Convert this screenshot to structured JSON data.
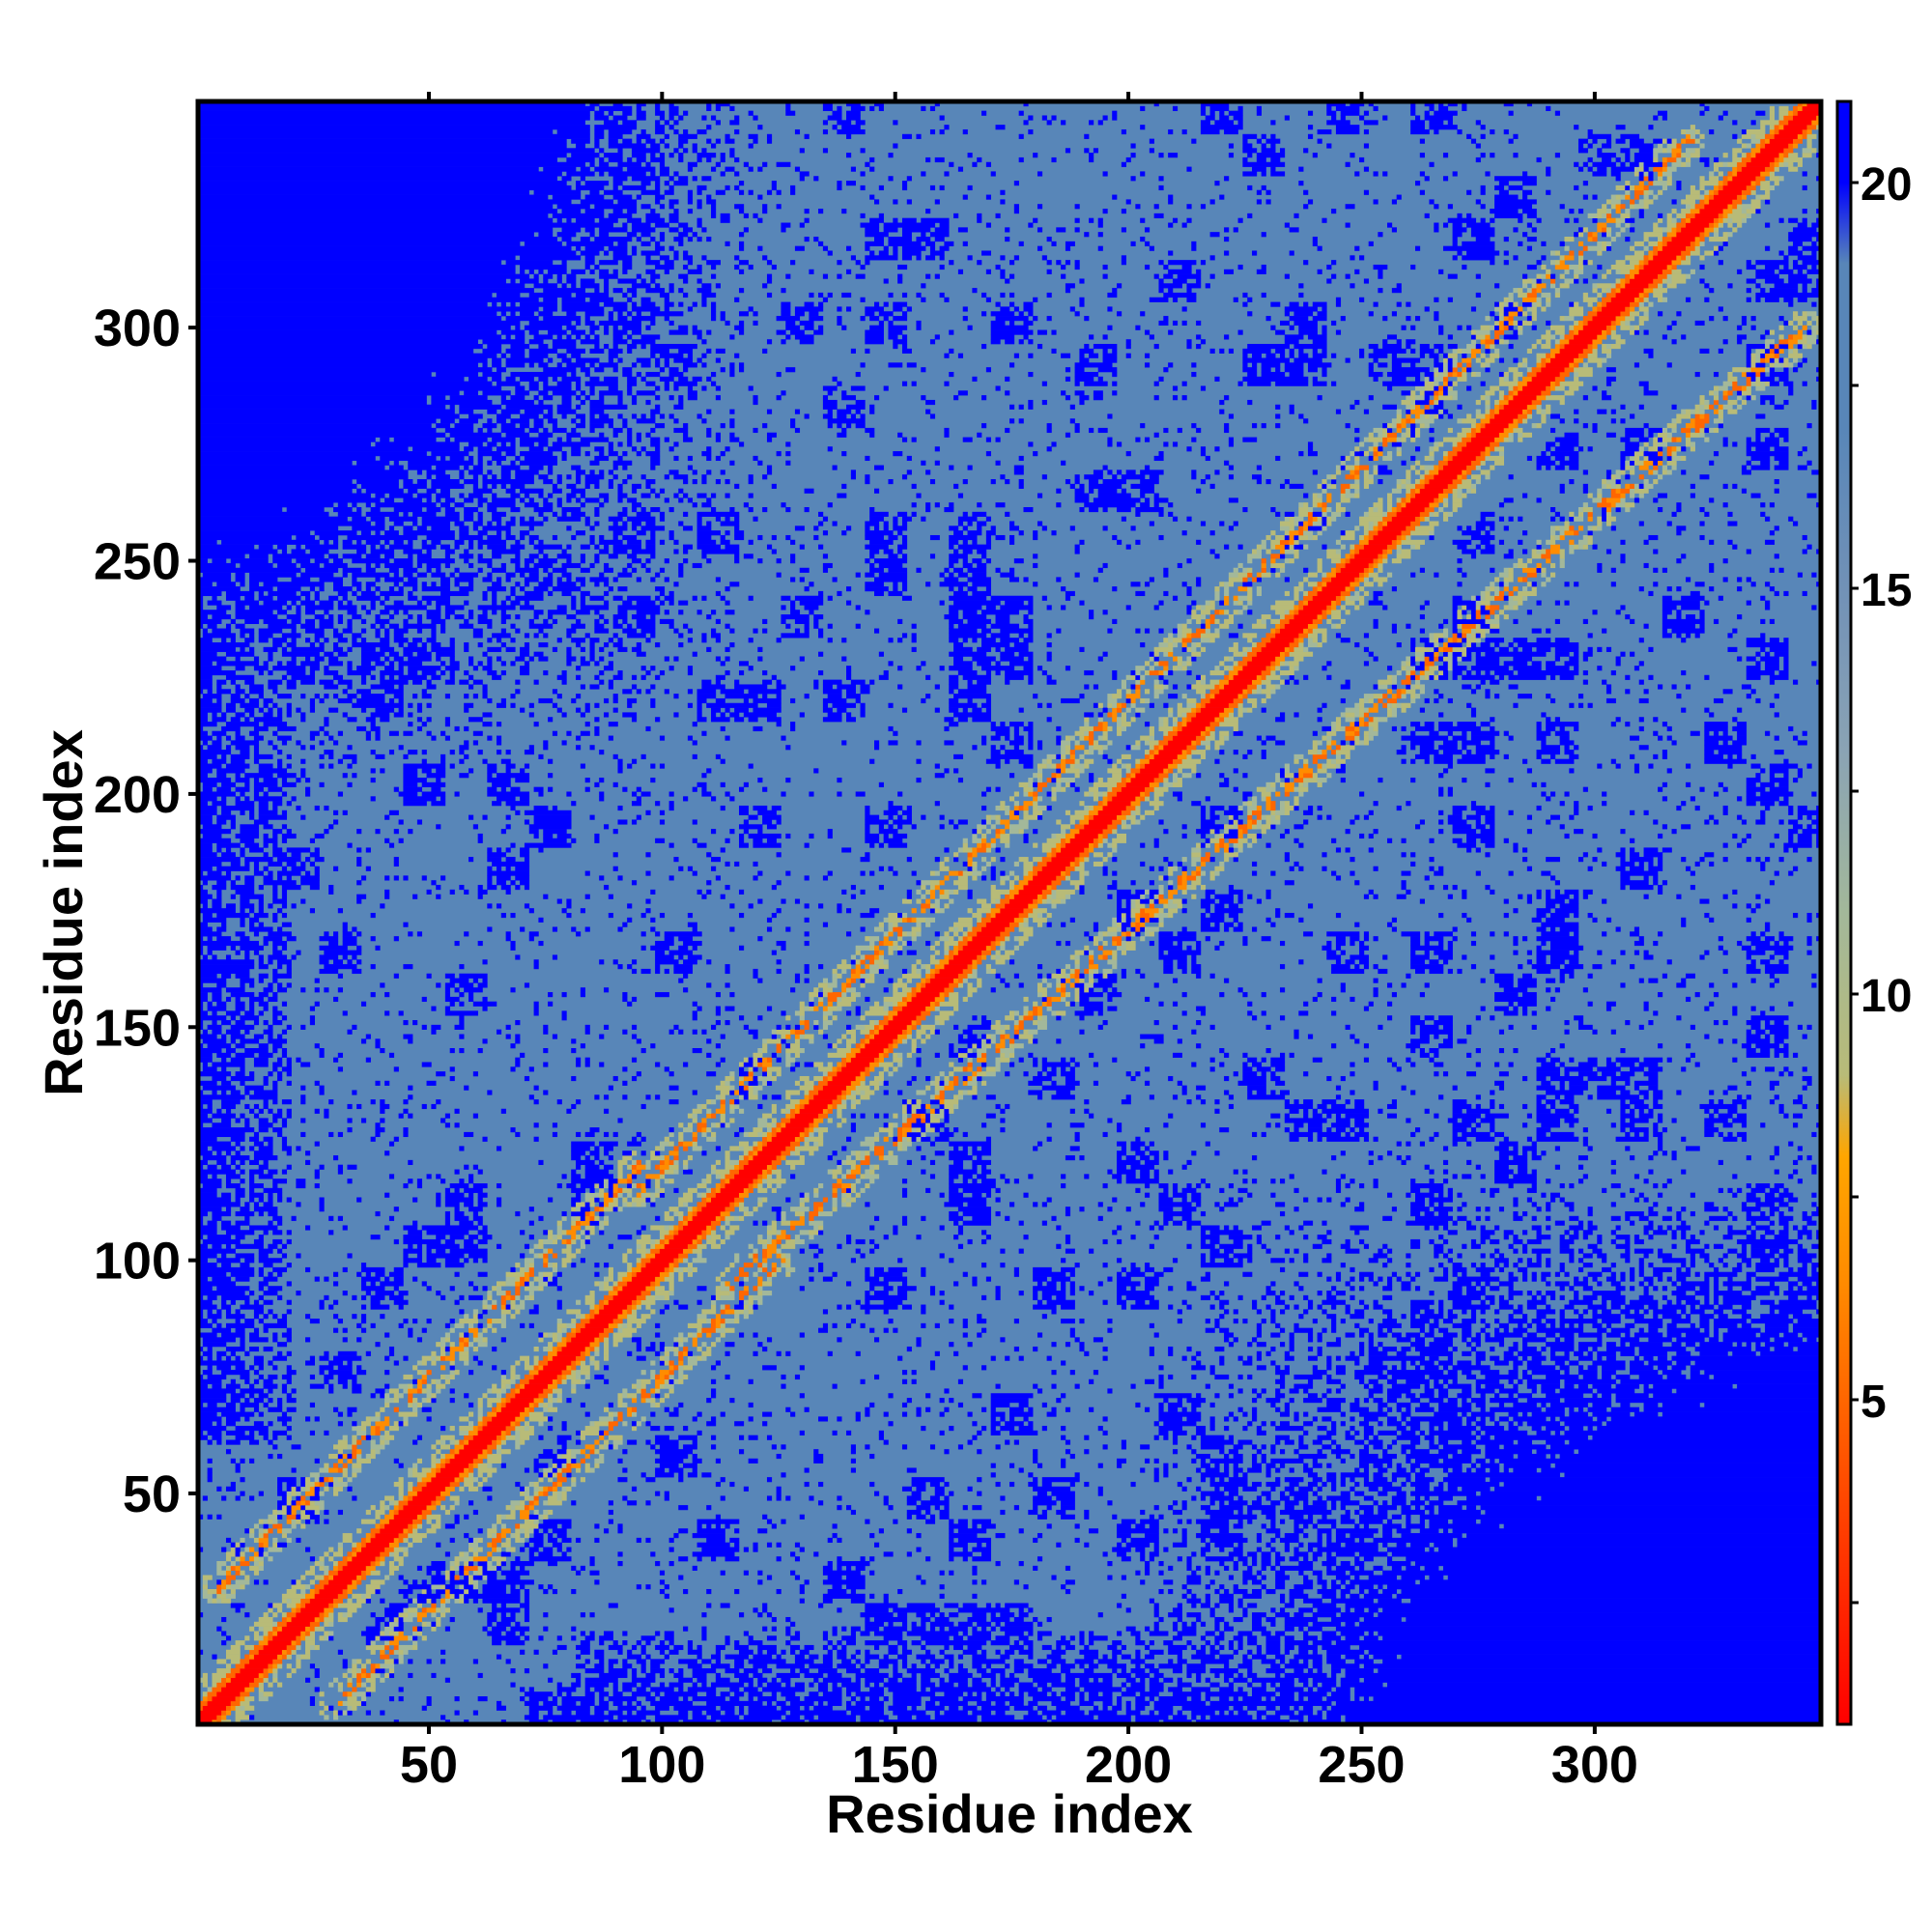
{
  "chart_data": {
    "type": "heatmap",
    "title": "",
    "xlabel": "Residue index",
    "ylabel": "Residue index",
    "xlim": [
      1,
      348
    ],
    "ylim": [
      1,
      348
    ],
    "x_ticks": [
      50,
      100,
      150,
      200,
      250,
      300
    ],
    "y_ticks": [
      50,
      100,
      150,
      200,
      250,
      300
    ],
    "n_residues": 348,
    "colorbar": {
      "range": [
        1,
        21
      ],
      "ticks": [
        5,
        10,
        15,
        20
      ],
      "stops": [
        {
          "value": 1,
          "color": "#ff0000"
        },
        {
          "value": 3,
          "color": "#ff3300"
        },
        {
          "value": 5,
          "color": "#ff6600"
        },
        {
          "value": 6.5,
          "color": "#ff8c00"
        },
        {
          "value": 8,
          "color": "#ffa500"
        },
        {
          "value": 9,
          "color": "#b8bb78"
        },
        {
          "value": 11,
          "color": "#a3b89a"
        },
        {
          "value": 13,
          "color": "#8aa3b4"
        },
        {
          "value": 15,
          "color": "#7191b7"
        },
        {
          "value": 17,
          "color": "#5886b8"
        },
        {
          "value": 19,
          "color": "#5886b8"
        },
        {
          "value": 20,
          "color": "#0000ff"
        },
        {
          "value": 21,
          "color": "#0000ff"
        }
      ]
    },
    "colors": {
      "diagonal": "#ff0000",
      "contact": "#ff8c00",
      "near": "#b8bb78",
      "background": "#5886b8",
      "far": "#0000ff"
    },
    "features": {
      "diagonal_width": 2,
      "helix_band_offsets": [
        6,
        11
      ],
      "strand_segments": [
        {
          "x": [
            5,
            95
          ],
          "y": [
            30,
            120
          ],
          "note": "upper parallel band"
        },
        {
          "x": [
            95,
            320
          ],
          "y": [
            115,
            340
          ],
          "note": "upper parallel band"
        },
        {
          "x": [
            30,
            125
          ],
          "y": [
            5,
            100
          ],
          "note": "lower parallel band"
        },
        {
          "x": [
            115,
            345
          ],
          "y": [
            95,
            300
          ],
          "note": "lower parallel band"
        }
      ],
      "far_corners": [
        "top-left",
        "bottom-right"
      ]
    }
  }
}
